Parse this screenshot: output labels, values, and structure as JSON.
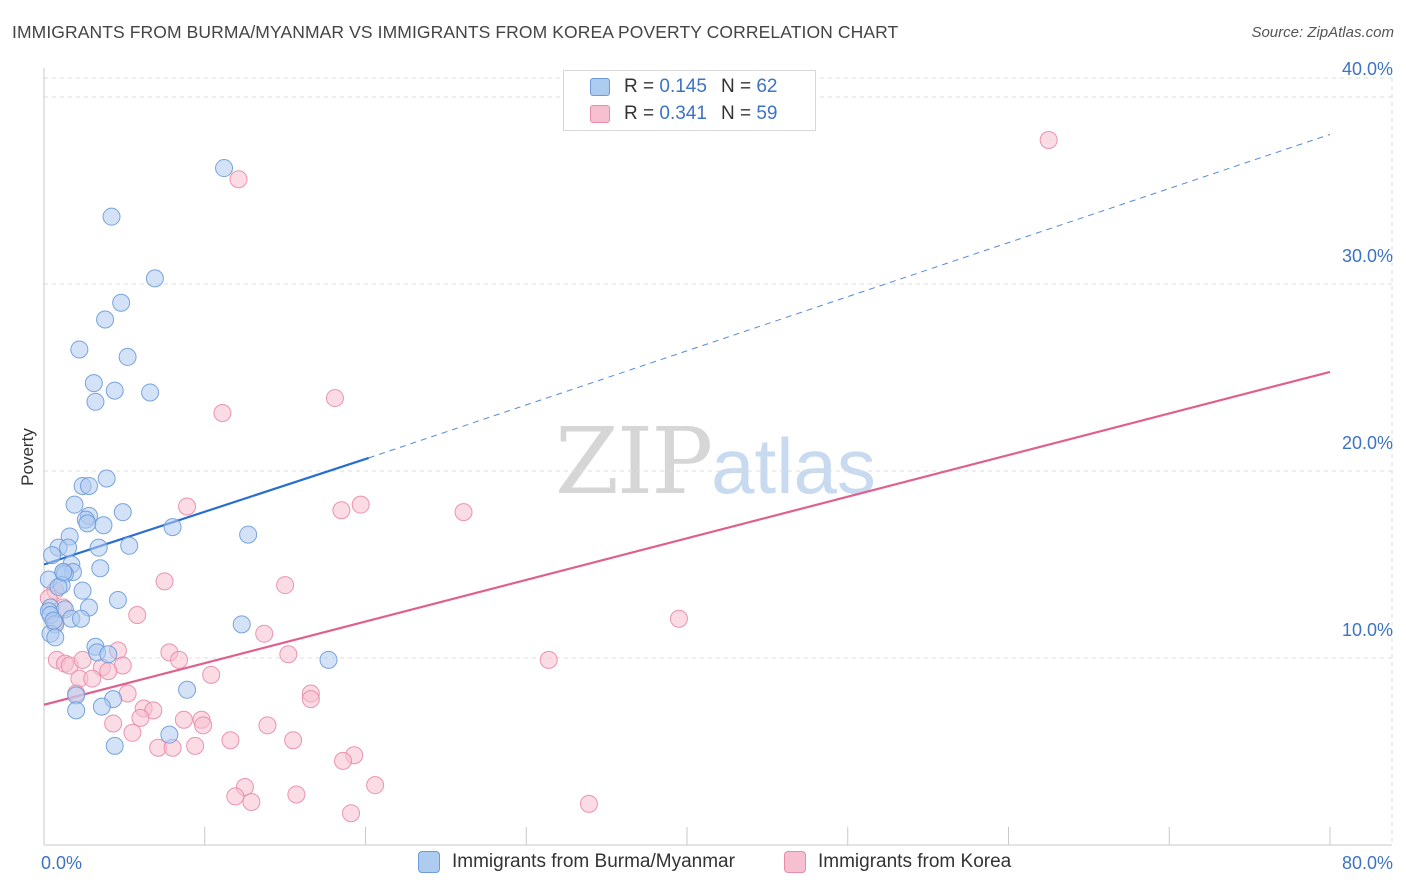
{
  "title": "IMMIGRANTS FROM BURMA/MYANMAR VS IMMIGRANTS FROM KOREA POVERTY CORRELATION CHART",
  "source": "Source: ZipAtlas.com",
  "watermark": {
    "zip": "ZIP",
    "atlas": "atlas"
  },
  "legend_top": [
    {
      "r_label": "R = ",
      "r_value": "0.145",
      "n_label": "N = ",
      "n_value": "62"
    },
    {
      "r_label": "R = ",
      "r_value": "0.341",
      "n_label": "N = ",
      "n_value": "59"
    }
  ],
  "legend_bottom": [
    "Immigrants from Burma/Myanmar",
    "Immigrants from Korea"
  ],
  "chart_data": {
    "type": "scatter",
    "title": "IMMIGRANTS FROM BURMA/MYANMAR VS IMMIGRANTS FROM KOREA POVERTY CORRELATION CHART",
    "xlabel": "",
    "ylabel": "Poverty",
    "xlim": [
      0,
      80
    ],
    "ylim": [
      0,
      40
    ],
    "x_tick_labels": [
      "0.0%",
      "80.0%"
    ],
    "y_ticks": [
      10,
      20,
      30,
      40
    ],
    "y_tick_labels": [
      "10.0%",
      "20.0%",
      "30.0%",
      "40.0%"
    ],
    "grid": true,
    "colors": {
      "burma_fill": "#aecbf0",
      "burma_stroke": "#6b9bd8",
      "burma_line": "#2a6dd0",
      "korea_fill": "#f7c0d0",
      "korea_stroke": "#e88aa8",
      "korea_line": "#e0608d",
      "tick_text": "#3d73c4",
      "grid": "#dddddd"
    },
    "series": [
      {
        "name": "Immigrants from Burma/Myanmar",
        "R": 0.145,
        "N": 62,
        "trend": {
          "x0": 0,
          "y0": 15.0,
          "x1": 20.2,
          "y1": 20.7,
          "dashed_to_x": 80,
          "dashed_to_y": 38.0
        },
        "points": [
          [
            11.2,
            36.2
          ],
          [
            4.2,
            33.6
          ],
          [
            6.9,
            30.3
          ],
          [
            4.8,
            29.0
          ],
          [
            3.8,
            28.1
          ],
          [
            2.2,
            26.5
          ],
          [
            5.2,
            26.1
          ],
          [
            3.1,
            24.7
          ],
          [
            4.4,
            24.3
          ],
          [
            6.6,
            24.2
          ],
          [
            3.2,
            23.7
          ],
          [
            2.4,
            19.2
          ],
          [
            2.8,
            19.2
          ],
          [
            3.9,
            19.6
          ],
          [
            1.9,
            18.2
          ],
          [
            2.8,
            17.6
          ],
          [
            4.9,
            17.8
          ],
          [
            2.6,
            17.4
          ],
          [
            2.7,
            17.2
          ],
          [
            3.7,
            17.1
          ],
          [
            8.0,
            17.0
          ],
          [
            12.7,
            16.6
          ],
          [
            1.6,
            16.5
          ],
          [
            5.3,
            16.0
          ],
          [
            0.9,
            15.9
          ],
          [
            1.5,
            15.9
          ],
          [
            3.4,
            15.9
          ],
          [
            0.5,
            15.5
          ],
          [
            1.7,
            15.0
          ],
          [
            1.2,
            14.6
          ],
          [
            1.8,
            14.6
          ],
          [
            3.5,
            14.8
          ],
          [
            1.3,
            14.5
          ],
          [
            0.3,
            14.2
          ],
          [
            1.1,
            13.9
          ],
          [
            0.9,
            13.8
          ],
          [
            2.4,
            13.6
          ],
          [
            4.6,
            13.1
          ],
          [
            2.8,
            12.7
          ],
          [
            0.4,
            12.7
          ],
          [
            1.3,
            12.6
          ],
          [
            0.3,
            12.5
          ],
          [
            0.4,
            12.3
          ],
          [
            1.7,
            12.1
          ],
          [
            2.3,
            12.1
          ],
          [
            0.7,
            11.8
          ],
          [
            12.3,
            11.8
          ],
          [
            0.4,
            11.3
          ],
          [
            0.7,
            11.1
          ],
          [
            3.2,
            10.6
          ],
          [
            3.3,
            10.3
          ],
          [
            4.0,
            10.2
          ],
          [
            17.7,
            9.9
          ],
          [
            8.9,
            8.3
          ],
          [
            2.0,
            8.0
          ],
          [
            4.3,
            7.8
          ],
          [
            2.0,
            7.2
          ],
          [
            3.6,
            7.4
          ],
          [
            7.8,
            5.9
          ],
          [
            4.4,
            5.3
          ],
          [
            1.2,
            14.6
          ],
          [
            0.6,
            12.0
          ]
        ]
      },
      {
        "name": "Immigrants from Korea",
        "R": 0.341,
        "N": 59,
        "trend": {
          "x0": 0,
          "y0": 7.5,
          "x1": 80,
          "y1": 25.3
        },
        "points": [
          [
            62.5,
            37.7
          ],
          [
            12.1,
            35.6
          ],
          [
            18.1,
            23.9
          ],
          [
            11.1,
            23.1
          ],
          [
            8.9,
            18.1
          ],
          [
            19.7,
            18.2
          ],
          [
            18.5,
            17.9
          ],
          [
            26.1,
            17.8
          ],
          [
            7.5,
            14.1
          ],
          [
            15.0,
            13.9
          ],
          [
            0.7,
            13.6
          ],
          [
            1.2,
            12.7
          ],
          [
            0.3,
            13.2
          ],
          [
            5.8,
            12.3
          ],
          [
            39.5,
            12.1
          ],
          [
            0.7,
            11.9
          ],
          [
            13.7,
            11.3
          ],
          [
            4.6,
            10.4
          ],
          [
            7.8,
            10.3
          ],
          [
            15.2,
            10.2
          ],
          [
            8.4,
            9.9
          ],
          [
            0.8,
            9.9
          ],
          [
            1.3,
            9.7
          ],
          [
            1.6,
            9.6
          ],
          [
            31.4,
            9.9
          ],
          [
            3.6,
            9.5
          ],
          [
            4.9,
            9.6
          ],
          [
            10.4,
            9.1
          ],
          [
            2.2,
            8.9
          ],
          [
            3.0,
            8.9
          ],
          [
            2.0,
            8.1
          ],
          [
            5.2,
            8.1
          ],
          [
            16.6,
            8.1
          ],
          [
            16.6,
            7.8
          ],
          [
            6.2,
            7.3
          ],
          [
            6.8,
            7.2
          ],
          [
            6.0,
            6.8
          ],
          [
            8.7,
            6.7
          ],
          [
            9.8,
            6.7
          ],
          [
            4.3,
            6.5
          ],
          [
            13.9,
            6.4
          ],
          [
            9.9,
            6.4
          ],
          [
            5.5,
            6.0
          ],
          [
            11.6,
            5.6
          ],
          [
            15.5,
            5.6
          ],
          [
            7.1,
            5.2
          ],
          [
            8.0,
            5.2
          ],
          [
            9.4,
            5.3
          ],
          [
            19.3,
            4.8
          ],
          [
            18.6,
            4.5
          ],
          [
            12.5,
            3.1
          ],
          [
            20.6,
            3.2
          ],
          [
            11.9,
            2.6
          ],
          [
            15.7,
            2.7
          ],
          [
            12.9,
            2.3
          ],
          [
            33.9,
            2.2
          ],
          [
            19.1,
            1.7
          ],
          [
            2.4,
            9.9
          ],
          [
            4.0,
            9.3
          ]
        ]
      }
    ]
  }
}
